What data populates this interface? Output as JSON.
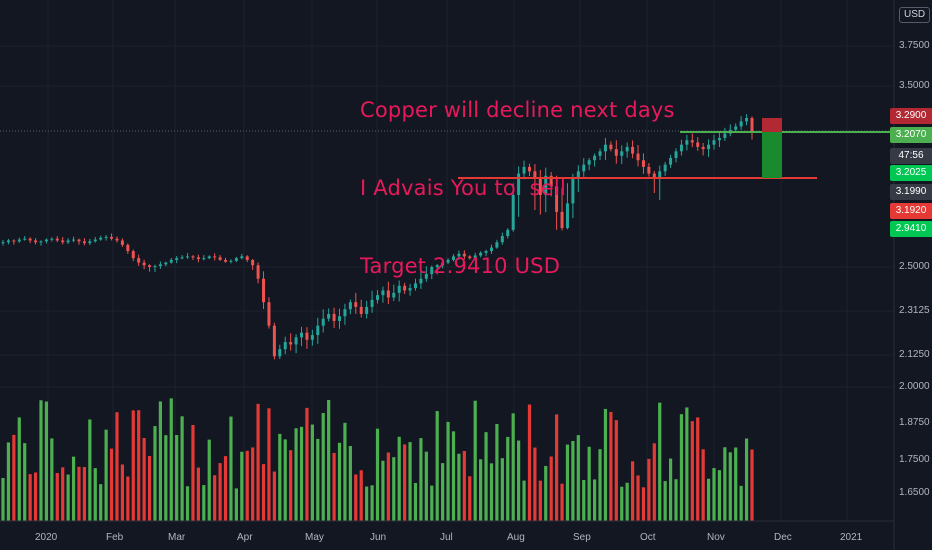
{
  "annotation": {
    "line1": "Copper will decline next days",
    "line2": "I Advais You to  sell",
    "line3": "Target 2.9410 USD"
  },
  "currency_button": "USD",
  "price_axis": {
    "ticks": [
      "3.7500",
      "3.5000",
      "2.5000",
      "2.3125",
      "2.1250",
      "2.0000",
      "1.8750",
      "1.7500",
      "1.6500"
    ],
    "badges": [
      {
        "text": "3.2900",
        "bg": "#b22833"
      },
      {
        "text": "3.2070",
        "bg": "#4caf50"
      },
      {
        "text": "47:56",
        "bg": "#363a45"
      },
      {
        "text": "3.2025",
        "bg": "#00c853"
      },
      {
        "text": "3.1990",
        "bg": "#363a45"
      },
      {
        "text": "3.1920",
        "bg": "#e53935"
      },
      {
        "text": "2.9410",
        "bg": "#00c853"
      }
    ]
  },
  "time_axis": {
    "labels": [
      "2020",
      "Feb",
      "Mar",
      "Apr",
      "May",
      "Jun",
      "Jul",
      "Aug",
      "Sep",
      "Oct",
      "Nov",
      "Dec",
      "2021"
    ]
  },
  "chart_data": {
    "type": "candlestick",
    "symbol_currency": "USD",
    "up_color": "#26a69a",
    "down_color": "#ef5350",
    "closes": [
      2.78,
      2.8,
      2.79,
      2.81,
      2.82,
      2.8,
      2.78,
      2.79,
      2.81,
      2.82,
      2.8,
      2.78,
      2.8,
      2.81,
      2.79,
      2.77,
      2.79,
      2.81,
      2.83,
      2.84,
      2.82,
      2.8,
      2.75,
      2.68,
      2.6,
      2.55,
      2.52,
      2.5,
      2.51,
      2.53,
      2.55,
      2.58,
      2.6,
      2.61,
      2.62,
      2.61,
      2.59,
      2.6,
      2.62,
      2.61,
      2.58,
      2.56,
      2.57,
      2.6,
      2.62,
      2.58,
      2.52,
      2.45,
      2.35,
      2.25,
      2.12,
      2.15,
      2.18,
      2.17,
      2.2,
      2.22,
      2.19,
      2.21,
      2.25,
      2.28,
      2.3,
      2.27,
      2.29,
      2.32,
      2.35,
      2.33,
      2.3,
      2.33,
      2.36,
      2.38,
      2.4,
      2.37,
      2.39,
      2.42,
      2.4,
      2.41,
      2.43,
      2.45,
      2.47,
      2.5,
      2.52,
      2.55,
      2.58,
      2.62,
      2.65,
      2.62,
      2.6,
      2.63,
      2.66,
      2.68,
      2.72,
      2.78,
      2.85,
      2.92,
      2.98,
      3.02,
      3.05,
      3.03,
      3.0,
      2.98,
      3.01,
      2.99,
      2.96,
      2.94,
      2.97,
      3.0,
      3.03,
      3.06,
      3.08,
      3.1,
      3.12,
      3.15,
      3.13,
      3.1,
      3.12,
      3.14,
      3.11,
      3.08,
      3.05,
      3.02,
      3.0,
      3.03,
      3.06,
      3.09,
      3.12,
      3.15,
      3.17,
      3.16,
      3.14,
      3.13,
      3.15,
      3.17,
      3.18,
      3.2,
      3.22,
      3.24,
      3.27,
      3.29,
      3.207
    ],
    "volumes_scale": [
      0.25,
      0.95
    ],
    "annotations": [
      {
        "type": "horizontal-resistance",
        "price": 3.207,
        "color": "#4caf50"
      },
      {
        "type": "horizontal-support",
        "price": 3.0,
        "color": "#e53935"
      },
      {
        "type": "short-position",
        "entry": 3.207,
        "stop": 3.29,
        "target": 2.941
      }
    ]
  }
}
